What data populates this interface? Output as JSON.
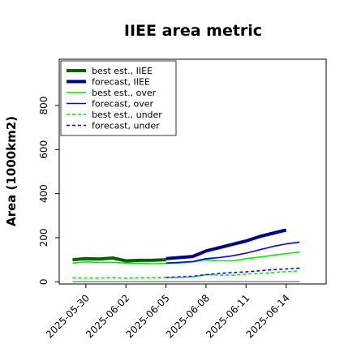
{
  "chart_data": {
    "type": "line",
    "title": "IIEE area metric",
    "xlabel": "",
    "ylabel": "Area (1000km2)",
    "ylim": [
      -10,
      1010
    ],
    "xlim": [
      "2025-05-28",
      "2025-06-17"
    ],
    "grid": false,
    "legend_position": "top-left",
    "x_ticks": [
      "2025-05-30",
      "2025-06-02",
      "2025-06-05",
      "2025-06-08",
      "2025-06-11",
      "2025-06-14"
    ],
    "highlight_tick": "2025-06-05",
    "highlight_color": "#228b22",
    "y_ticks": [
      0,
      200,
      400,
      600,
      800
    ],
    "x": [
      "2025-05-29",
      "2025-05-30",
      "2025-05-31",
      "2025-06-01",
      "2025-06-02",
      "2025-06-03",
      "2025-06-04",
      "2025-06-05",
      "2025-06-06",
      "2025-06-07",
      "2025-06-08",
      "2025-06-09",
      "2025-06-10",
      "2025-06-11",
      "2025-06-12",
      "2025-06-13",
      "2025-06-14",
      "2025-06-15"
    ],
    "series": [
      {
        "name": "best est., IIEE",
        "color": "#006400",
        "dash": "solid",
        "width": 4,
        "x_start": "2025-05-29",
        "values": [
          100,
          105,
          103,
          108,
          95,
          97,
          98,
          100,
          null,
          null,
          null,
          null,
          null,
          null,
          null,
          null,
          null,
          null
        ]
      },
      {
        "name": "forecast, IIEE",
        "color": "#00008b",
        "dash": "solid",
        "width": 4,
        "x_start": "2025-06-05",
        "values": [
          null,
          null,
          null,
          null,
          null,
          null,
          null,
          105,
          110,
          115,
          140,
          155,
          170,
          185,
          205,
          220,
          235,
          null
        ]
      },
      {
        "name": "best est., over",
        "color": "#00ee00",
        "dash": "solid",
        "width": 1.6,
        "values": [
          85,
          90,
          88,
          88,
          85,
          83,
          82,
          83,
          85,
          90,
          100,
          95,
          95,
          105,
          112,
          120,
          128,
          135
        ]
      },
      {
        "name": "forecast, over",
        "color": "#0000ff",
        "dash": "solid",
        "width": 1.6,
        "values": [
          null,
          null,
          null,
          null,
          null,
          null,
          null,
          85,
          88,
          92,
          105,
          110,
          118,
          130,
          145,
          160,
          172,
          180
        ]
      },
      {
        "name": "best est., under",
        "color": "#00ee00",
        "dash": "dashed",
        "width": 1.6,
        "values": [
          18,
          17,
          17,
          19,
          16,
          18,
          19,
          20,
          20,
          22,
          32,
          30,
          30,
          35,
          38,
          42,
          46,
          50
        ]
      },
      {
        "name": "forecast, under",
        "color": "#0000ff",
        "dash": "dashed",
        "width": 1.6,
        "values": [
          null,
          null,
          null,
          null,
          null,
          null,
          null,
          20,
          22,
          25,
          32,
          38,
          42,
          45,
          50,
          55,
          58,
          62
        ]
      },
      {
        "name": "",
        "color": "#888888",
        "dash": "solid",
        "width": 1.5,
        "values": [
          0,
          0,
          0,
          0,
          0,
          0,
          0,
          0,
          0,
          0,
          0,
          0,
          0,
          0,
          0,
          0,
          0,
          0
        ]
      }
    ]
  }
}
